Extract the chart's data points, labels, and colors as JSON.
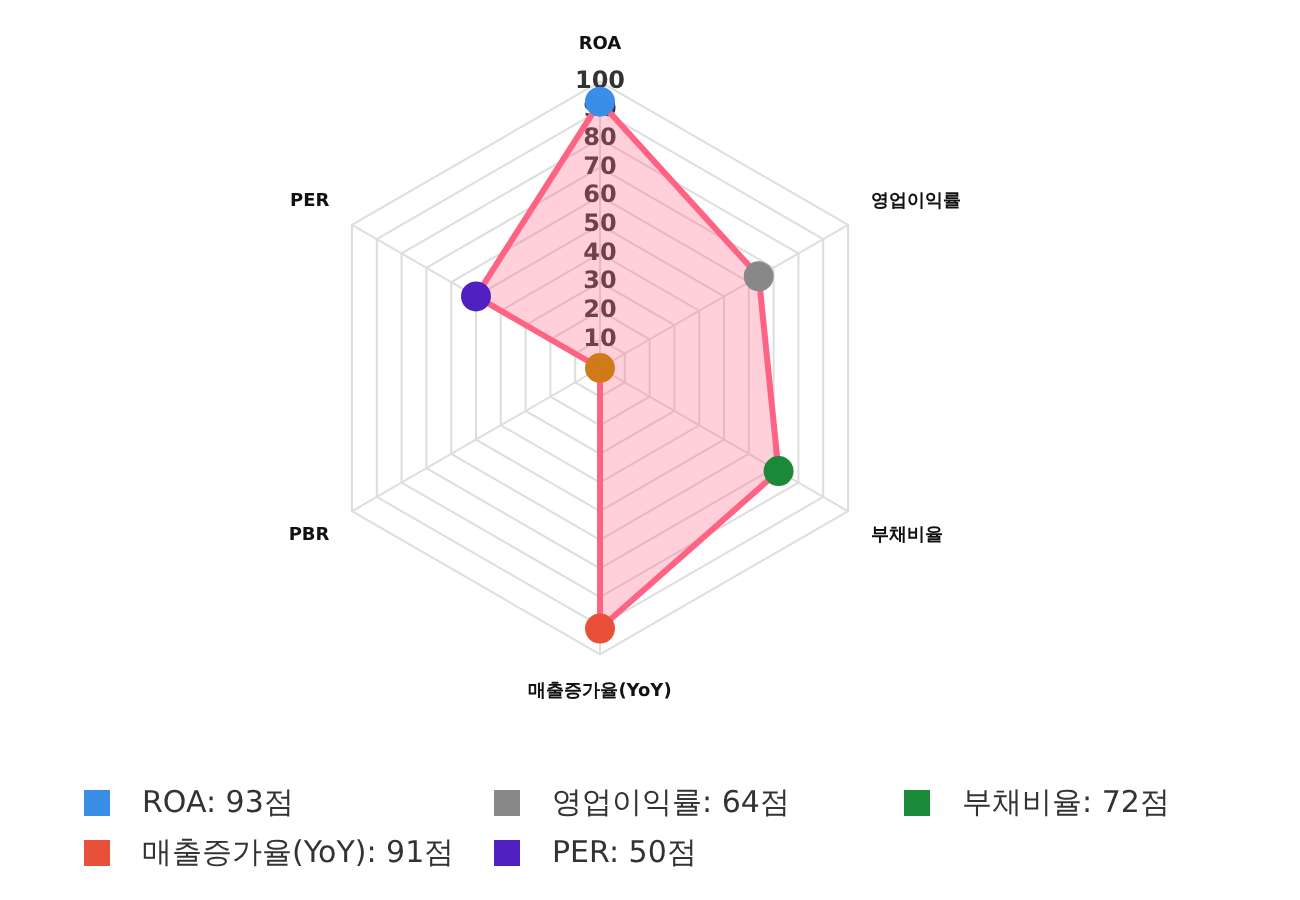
{
  "chart_data": {
    "type": "radar",
    "categories": [
      "ROA",
      "영업이익률",
      "부채비율",
      "매출증가율(YoY)",
      "PBR",
      "PER"
    ],
    "series": [
      {
        "color": "#ff6384",
        "values": [
          93,
          64,
          72,
          91,
          0,
          50
        ],
        "colors": [
          "#3a8ee6",
          "#888888",
          "#1a8a3a",
          "#e8503a",
          "#d07a1a",
          "#5020c0"
        ]
      }
    ],
    "ylim": [
      0,
      100
    ],
    "yticks": [
      10,
      20,
      30,
      40,
      50,
      60,
      70,
      80,
      90,
      100
    ],
    "grid": true,
    "annotations": [
      {
        "text": "ROA: 93점",
        "x": "ROA"
      },
      {
        "text": "영업이익률: 64점",
        "x": "영업이익률"
      },
      {
        "text": "부채비율: 72점",
        "x": "부채비율"
      },
      {
        "text": "매출증가율(YoY): 91점",
        "x": "매출증가율(YoY)"
      },
      {
        "text": "PER: 50점",
        "x": "PER"
      }
    ]
  }
}
